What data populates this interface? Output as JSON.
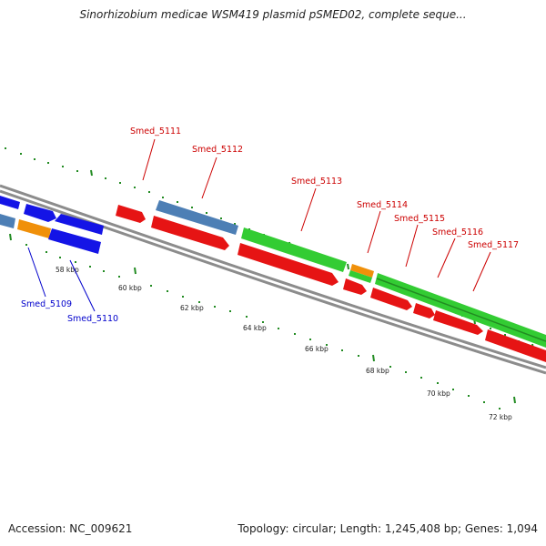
{
  "title": "Sinorhizobium medicae WSM419 plasmid pSMED02, complete seque...",
  "footer": {
    "accession": "Accession: NC_009621",
    "summary": "Topology: circular; Length: 1,245,408 bp; Genes: 1,094"
  },
  "colors": {
    "blue": "#1414e6",
    "steelblue": "#4d7fb5",
    "orange": "#f0900a",
    "red": "#e61414",
    "green": "#33cc33",
    "green_dark": "#228b22",
    "backbone": "#8c8c8c",
    "tick": "#228b22",
    "label_red": "#cc0000",
    "label_blue": "#0000cc"
  },
  "kbp_labels": [
    "58 kbp",
    "60 kbp",
    "62 kbp",
    "64 kbp",
    "66 kbp",
    "68 kbp",
    "70 kbp",
    "72 kbp"
  ],
  "gene_labels": {
    "smed_5109": "Smed_5109",
    "smed_5110": "Smed_5110",
    "smed_5111": "Smed_5111",
    "smed_5112": "Smed_5112",
    "smed_5113": "Smed_5113",
    "smed_5114": "Smed_5114",
    "smed_5115": "Smed_5115",
    "smed_5116": "Smed_5116",
    "smed_5117": "Smed_5117"
  }
}
